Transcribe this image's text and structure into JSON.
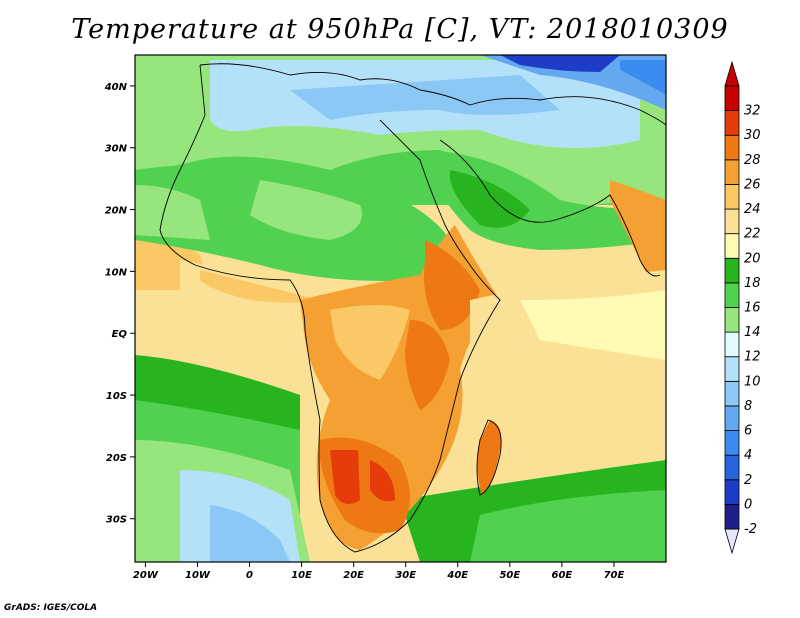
{
  "title": "Temperature at 950hPa [C], VT: 2018010309",
  "credit": "GrADS: IGES/COLA",
  "map": {
    "lon_range": [
      -22,
      80
    ],
    "lat_range": [
      -37,
      45
    ],
    "lon_ticks": [
      {
        "value": -20,
        "label": "20W"
      },
      {
        "value": -10,
        "label": "10W"
      },
      {
        "value": 0,
        "label": "0"
      },
      {
        "value": 10,
        "label": "10E"
      },
      {
        "value": 20,
        "label": "20E"
      },
      {
        "value": 30,
        "label": "30E"
      },
      {
        "value": 40,
        "label": "40E"
      },
      {
        "value": 50,
        "label": "50E"
      },
      {
        "value": 60,
        "label": "60E"
      },
      {
        "value": 70,
        "label": "70E"
      }
    ],
    "lat_ticks": [
      {
        "value": 40,
        "label": "40N"
      },
      {
        "value": 30,
        "label": "30N"
      },
      {
        "value": 20,
        "label": "20N"
      },
      {
        "value": 10,
        "label": "10N"
      },
      {
        "value": 0,
        "label": "EQ"
      },
      {
        "value": -10,
        "label": "10S"
      },
      {
        "value": -20,
        "label": "20S"
      },
      {
        "value": -30,
        "label": "30S"
      }
    ]
  },
  "colorbar": {
    "labels": [
      "-2",
      "0",
      "2",
      "4",
      "6",
      "8",
      "10",
      "12",
      "14",
      "16",
      "18",
      "20",
      "22",
      "24",
      "26",
      "28",
      "30",
      "32"
    ],
    "colors": [
      "#1e1e8c",
      "#1e3cc8",
      "#2864dc",
      "#3c8cf0",
      "#64a8f0",
      "#8cc8f5",
      "#b4e1fa",
      "#e1faff",
      "#96e67d",
      "#50d250",
      "#28b41e",
      "#fffab4",
      "#fae196",
      "#fac864",
      "#f5a032",
      "#ee7814",
      "#e63c0a",
      "#c80000"
    ]
  }
}
